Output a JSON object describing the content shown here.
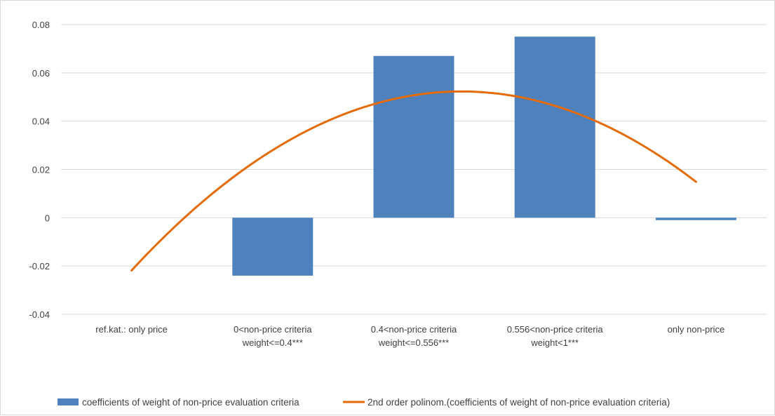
{
  "chart_data": {
    "type": "bar",
    "categories": [
      [
        "ref.kat.: only price"
      ],
      [
        "0<non-price criteria",
        "weight<=0.4***"
      ],
      [
        "0.4<non-price criteria",
        "weight<=0.556***"
      ],
      [
        "0.556<non-price criteria",
        "weight<1***"
      ],
      [
        "only non-price"
      ]
    ],
    "series": [
      {
        "name": "coefficients of weight of non-price evaluation criteria",
        "type": "bar",
        "values": [
          0,
          -0.024,
          0.067,
          0.075,
          -0.001
        ],
        "color": "#4f81bd"
      },
      {
        "name": "2nd order polinom.(coefficients of weight of non-price evaluation criteria)",
        "type": "trendline-poly2",
        "values": [
          -0.0227,
          0.0294,
          0.0516,
          0.0438,
          0.016
        ],
        "color": "#e36c09"
      }
    ],
    "title": "",
    "xlabel": "",
    "ylabel": "",
    "ylim": [
      -0.04,
      0.08
    ],
    "yticks": [
      "-0.04",
      "-0.02",
      "0",
      "0.02",
      "0.04",
      "0.06",
      "0.08"
    ],
    "grid": true,
    "legend_position": "bottom"
  }
}
